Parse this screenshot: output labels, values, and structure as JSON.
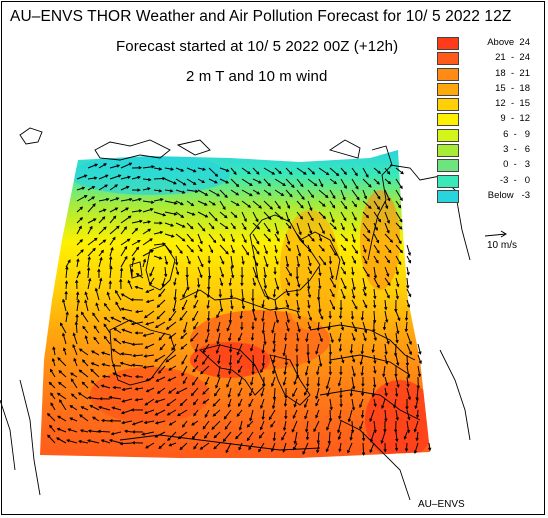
{
  "title": "AU–ENVS THOR Weather and Air Pollution Forecast for 10/ 5 2022  12Z",
  "subtitle": "Forecast started at 10/ 5 2022  00Z (+12h)",
  "field": "2 m T and 10 m wind",
  "legend": [
    {
      "label": "Above  24",
      "color": "#ff3b1a"
    },
    {
      "label": "21  -  24",
      "color": "#ff5a1a"
    },
    {
      "label": "18  -  21",
      "color": "#ff8a14"
    },
    {
      "label": "15  -  18",
      "color": "#ffa80e"
    },
    {
      "label": "12  -  15",
      "color": "#ffcf08"
    },
    {
      "label": "9  -  12",
      "color": "#fff000"
    },
    {
      "label": "6  -   9",
      "color": "#d4f51a"
    },
    {
      "label": "3  -   6",
      "color": "#a8ec3a"
    },
    {
      "label": "0  -   3",
      "color": "#6ee47e"
    },
    {
      "label": "-3  -   0",
      "color": "#3ae8b8"
    },
    {
      "label": "Below   -3",
      "color": "#2ad4dc"
    }
  ],
  "wind_key": "10 m/s",
  "credit": "AU–ENVS"
}
